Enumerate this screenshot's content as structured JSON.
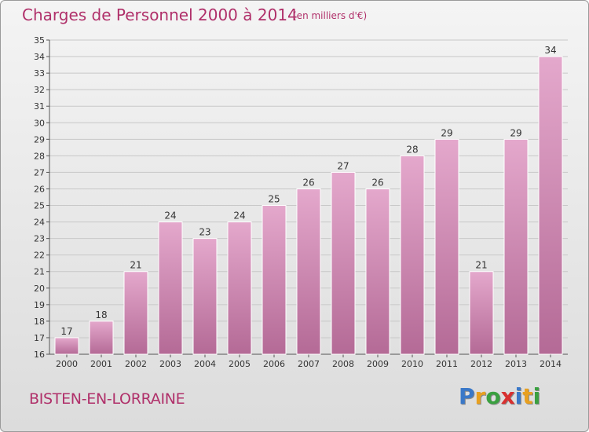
{
  "header": {
    "title": "Charges de Personnel 2000 à 2014",
    "subtitle": "(en milliers d'€)"
  },
  "footer": {
    "commune": "BISTEN-EN-LORRAINE",
    "logo_letters": [
      {
        "ch": "P",
        "color": "#3a78c8"
      },
      {
        "ch": "r",
        "color": "#e8a020"
      },
      {
        "ch": "o",
        "color": "#3aa040"
      },
      {
        "ch": "x",
        "color": "#d83030"
      },
      {
        "ch": "i",
        "color": "#3a78c8"
      },
      {
        "ch": "t",
        "color": "#e8a020"
      },
      {
        "ch": "i",
        "color": "#3aa040"
      }
    ]
  },
  "colors": {
    "bar_top": "#e4a8cc",
    "bar_bottom": "#b46a96",
    "grid": "#c8c8c8",
    "text_accent": "#b0306a"
  },
  "chart_data": {
    "type": "bar",
    "title": "Charges de Personnel 2000 à 2014",
    "subtitle": "(en milliers d'€)",
    "categories": [
      "2000",
      "2001",
      "2002",
      "2003",
      "2004",
      "2005",
      "2006",
      "2007",
      "2008",
      "2009",
      "2010",
      "2011",
      "2012",
      "2013",
      "2014"
    ],
    "values": [
      17,
      18,
      21,
      24,
      23,
      24,
      25,
      26,
      27,
      26,
      28,
      29,
      21,
      29,
      34
    ],
    "ylim": [
      16,
      35
    ],
    "yticks": [
      16,
      17,
      18,
      19,
      20,
      21,
      22,
      23,
      24,
      25,
      26,
      27,
      28,
      29,
      30,
      31,
      32,
      33,
      34,
      35
    ],
    "grid": true,
    "legend": "none"
  }
}
